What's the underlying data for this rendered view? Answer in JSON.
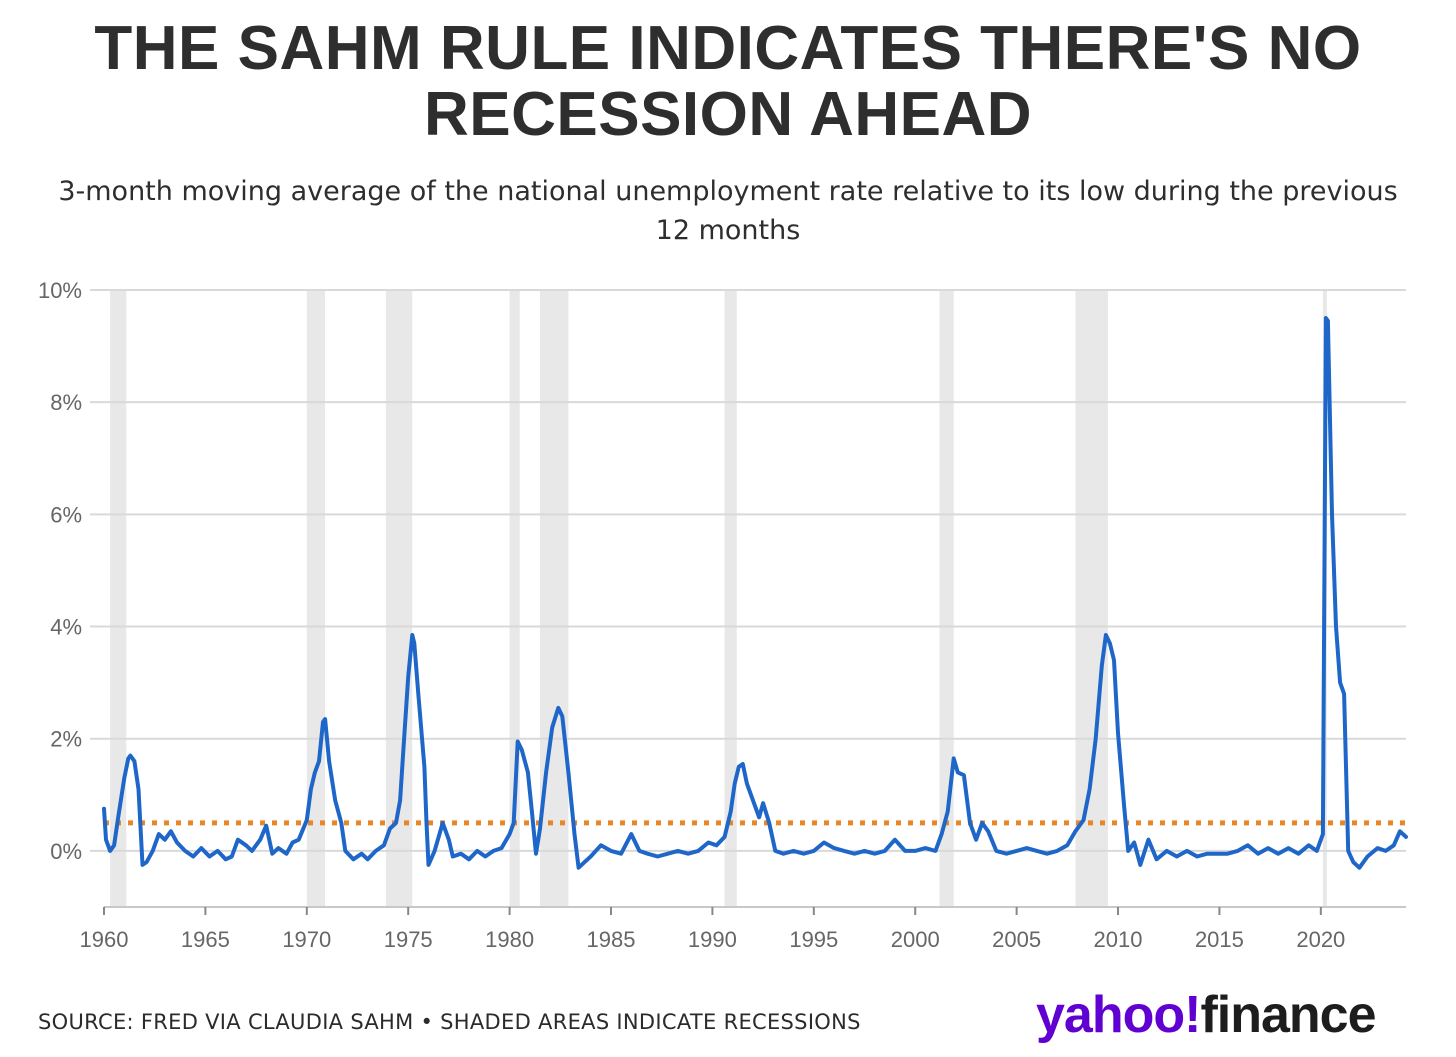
{
  "title": "THE SAHM RULE INDICATES THERE'S NO RECESSION AHEAD",
  "subtitle": "3-month moving average of the national unemployment rate relative to its low during the previous 12 months",
  "footer": {
    "source": "SOURCE: FRED VIA CLAUDIA SAHM • SHADED AREAS INDICATE RECESSIONS",
    "logo_yahoo": "yahoo!",
    "logo_finance": "finance"
  },
  "colors": {
    "line": "#1f66c9",
    "threshold": "#e8862a",
    "recession": "#e8e8e8",
    "grid": "#d9d9d9"
  },
  "chart_data": {
    "type": "line",
    "title": "THE SAHM RULE INDICATES THERE'S NO RECESSION AHEAD",
    "subtitle": "3-month moving average of the national unemployment rate relative to its low during the previous 12 months",
    "xlabel": "",
    "ylabel": "",
    "xlim": [
      1960,
      2024.2
    ],
    "ylim": [
      -1,
      10
    ],
    "x_ticks": [
      1960,
      1965,
      1970,
      1975,
      1980,
      1985,
      1990,
      1995,
      2000,
      2005,
      2010,
      2015,
      2020
    ],
    "x_tick_labels": [
      "1960",
      "1965",
      "1970",
      "1975",
      "1980",
      "1985",
      "1990",
      "1995",
      "2000",
      "2005",
      "2010",
      "2015",
      "2020"
    ],
    "y_ticks": [
      0,
      2,
      4,
      6,
      8,
      10
    ],
    "y_tick_labels": [
      "0%",
      "2%",
      "4%",
      "6%",
      "8%",
      "10%"
    ],
    "grid": true,
    "threshold": {
      "value": 0.5,
      "style": "dotted"
    },
    "recessions": [
      [
        1960.3,
        1961.1
      ],
      [
        1970.0,
        1970.9
      ],
      [
        1973.9,
        1975.2
      ],
      [
        1980.0,
        1980.5
      ],
      [
        1981.5,
        1982.9
      ],
      [
        1990.6,
        1991.2
      ],
      [
        2001.2,
        2001.9
      ],
      [
        2007.9,
        2009.5
      ],
      [
        2020.1,
        2020.3
      ]
    ],
    "series": [
      {
        "values": [
          [
            1960.0,
            0.75
          ],
          [
            1960.1,
            0.2
          ],
          [
            1960.3,
            0.0
          ],
          [
            1960.5,
            0.1
          ],
          [
            1960.7,
            0.6
          ],
          [
            1961.0,
            1.3
          ],
          [
            1961.2,
            1.65
          ],
          [
            1961.3,
            1.7
          ],
          [
            1961.5,
            1.6
          ],
          [
            1961.7,
            1.1
          ],
          [
            1961.9,
            -0.25
          ],
          [
            1962.1,
            -0.2
          ],
          [
            1962.4,
            0.0
          ],
          [
            1962.7,
            0.3
          ],
          [
            1963.0,
            0.2
          ],
          [
            1963.3,
            0.35
          ],
          [
            1963.6,
            0.15
          ],
          [
            1964.0,
            0.0
          ],
          [
            1964.4,
            -0.1
          ],
          [
            1964.8,
            0.05
          ],
          [
            1965.2,
            -0.1
          ],
          [
            1965.6,
            0.0
          ],
          [
            1966.0,
            -0.15
          ],
          [
            1966.3,
            -0.1
          ],
          [
            1966.6,
            0.2
          ],
          [
            1967.0,
            0.1
          ],
          [
            1967.3,
            0.0
          ],
          [
            1967.7,
            0.2
          ],
          [
            1968.0,
            0.45
          ],
          [
            1968.3,
            -0.05
          ],
          [
            1968.6,
            0.05
          ],
          [
            1969.0,
            -0.05
          ],
          [
            1969.3,
            0.15
          ],
          [
            1969.6,
            0.2
          ],
          [
            1970.0,
            0.55
          ],
          [
            1970.2,
            1.1
          ],
          [
            1970.4,
            1.4
          ],
          [
            1970.6,
            1.6
          ],
          [
            1970.8,
            2.3
          ],
          [
            1970.9,
            2.35
          ],
          [
            1971.1,
            1.6
          ],
          [
            1971.4,
            0.9
          ],
          [
            1971.7,
            0.5
          ],
          [
            1971.9,
            0.0
          ],
          [
            1972.3,
            -0.15
          ],
          [
            1972.7,
            -0.05
          ],
          [
            1973.0,
            -0.15
          ],
          [
            1973.4,
            0.0
          ],
          [
            1973.8,
            0.1
          ],
          [
            1974.1,
            0.4
          ],
          [
            1974.4,
            0.5
          ],
          [
            1974.6,
            0.9
          ],
          [
            1974.8,
            2.0
          ],
          [
            1975.0,
            3.1
          ],
          [
            1975.2,
            3.85
          ],
          [
            1975.3,
            3.7
          ],
          [
            1975.5,
            2.8
          ],
          [
            1975.8,
            1.5
          ],
          [
            1975.9,
            0.5
          ],
          [
            1976.0,
            -0.25
          ],
          [
            1976.3,
            0.0
          ],
          [
            1976.7,
            0.5
          ],
          [
            1977.0,
            0.2
          ],
          [
            1977.2,
            -0.1
          ],
          [
            1977.6,
            -0.05
          ],
          [
            1978.0,
            -0.15
          ],
          [
            1978.4,
            0.0
          ],
          [
            1978.8,
            -0.1
          ],
          [
            1979.2,
            0.0
          ],
          [
            1979.6,
            0.05
          ],
          [
            1980.0,
            0.3
          ],
          [
            1980.2,
            0.5
          ],
          [
            1980.4,
            1.95
          ],
          [
            1980.6,
            1.8
          ],
          [
            1980.9,
            1.4
          ],
          [
            1981.1,
            0.7
          ],
          [
            1981.3,
            -0.05
          ],
          [
            1981.5,
            0.4
          ],
          [
            1981.8,
            1.4
          ],
          [
            1982.1,
            2.2
          ],
          [
            1982.4,
            2.55
          ],
          [
            1982.6,
            2.4
          ],
          [
            1982.9,
            1.4
          ],
          [
            1983.2,
            0.3
          ],
          [
            1983.4,
            -0.3
          ],
          [
            1983.7,
            -0.2
          ],
          [
            1984.0,
            -0.1
          ],
          [
            1984.5,
            0.1
          ],
          [
            1985.0,
            0.0
          ],
          [
            1985.5,
            -0.05
          ],
          [
            1986.0,
            0.3
          ],
          [
            1986.4,
            0.0
          ],
          [
            1986.8,
            -0.05
          ],
          [
            1987.3,
            -0.1
          ],
          [
            1987.8,
            -0.05
          ],
          [
            1988.3,
            0.0
          ],
          [
            1988.8,
            -0.05
          ],
          [
            1989.3,
            0.0
          ],
          [
            1989.8,
            0.15
          ],
          [
            1990.2,
            0.1
          ],
          [
            1990.6,
            0.25
          ],
          [
            1990.9,
            0.7
          ],
          [
            1991.1,
            1.2
          ],
          [
            1991.3,
            1.5
          ],
          [
            1991.5,
            1.55
          ],
          [
            1991.7,
            1.2
          ],
          [
            1992.0,
            0.9
          ],
          [
            1992.3,
            0.6
          ],
          [
            1992.5,
            0.85
          ],
          [
            1992.8,
            0.5
          ],
          [
            1993.1,
            0.0
          ],
          [
            1993.5,
            -0.05
          ],
          [
            1994.0,
            0.0
          ],
          [
            1994.5,
            -0.05
          ],
          [
            1995.0,
            0.0
          ],
          [
            1995.5,
            0.15
          ],
          [
            1996.0,
            0.05
          ],
          [
            1996.5,
            0.0
          ],
          [
            1997.0,
            -0.05
          ],
          [
            1997.5,
            0.0
          ],
          [
            1998.0,
            -0.05
          ],
          [
            1998.5,
            0.0
          ],
          [
            1999.0,
            0.2
          ],
          [
            1999.5,
            0.0
          ],
          [
            2000.0,
            0.0
          ],
          [
            2000.5,
            0.05
          ],
          [
            2001.0,
            0.0
          ],
          [
            2001.3,
            0.3
          ],
          [
            2001.6,
            0.7
          ],
          [
            2001.9,
            1.65
          ],
          [
            2002.1,
            1.4
          ],
          [
            2002.4,
            1.35
          ],
          [
            2002.7,
            0.5
          ],
          [
            2003.0,
            0.2
          ],
          [
            2003.3,
            0.5
          ],
          [
            2003.6,
            0.35
          ],
          [
            2004.0,
            0.0
          ],
          [
            2004.5,
            -0.05
          ],
          [
            2005.0,
            0.0
          ],
          [
            2005.5,
            0.05
          ],
          [
            2006.0,
            0.0
          ],
          [
            2006.5,
            -0.05
          ],
          [
            2007.0,
            0.0
          ],
          [
            2007.5,
            0.1
          ],
          [
            2007.9,
            0.35
          ],
          [
            2008.3,
            0.55
          ],
          [
            2008.6,
            1.1
          ],
          [
            2008.9,
            2.0
          ],
          [
            2009.2,
            3.3
          ],
          [
            2009.4,
            3.85
          ],
          [
            2009.6,
            3.7
          ],
          [
            2009.8,
            3.4
          ],
          [
            2010.0,
            2.1
          ],
          [
            2010.3,
            0.8
          ],
          [
            2010.5,
            0.0
          ],
          [
            2010.8,
            0.15
          ],
          [
            2011.1,
            -0.25
          ],
          [
            2011.5,
            0.2
          ],
          [
            2011.9,
            -0.15
          ],
          [
            2012.4,
            0.0
          ],
          [
            2012.9,
            -0.1
          ],
          [
            2013.4,
            0.0
          ],
          [
            2013.9,
            -0.1
          ],
          [
            2014.4,
            -0.05
          ],
          [
            2014.9,
            -0.05
          ],
          [
            2015.4,
            -0.05
          ],
          [
            2015.9,
            0.0
          ],
          [
            2016.4,
            0.1
          ],
          [
            2016.9,
            -0.05
          ],
          [
            2017.4,
            0.05
          ],
          [
            2017.9,
            -0.05
          ],
          [
            2018.4,
            0.05
          ],
          [
            2018.9,
            -0.05
          ],
          [
            2019.4,
            0.1
          ],
          [
            2019.8,
            0.0
          ],
          [
            2020.1,
            0.3
          ],
          [
            2020.25,
            9.5
          ],
          [
            2020.35,
            9.45
          ],
          [
            2020.55,
            6.0
          ],
          [
            2020.75,
            4.0
          ],
          [
            2020.95,
            3.0
          ],
          [
            2021.15,
            2.8
          ],
          [
            2021.35,
            0.0
          ],
          [
            2021.6,
            -0.2
          ],
          [
            2021.9,
            -0.3
          ],
          [
            2022.3,
            -0.1
          ],
          [
            2022.8,
            0.05
          ],
          [
            2023.2,
            0.0
          ],
          [
            2023.6,
            0.1
          ],
          [
            2023.9,
            0.35
          ],
          [
            2024.2,
            0.25
          ]
        ]
      }
    ]
  }
}
